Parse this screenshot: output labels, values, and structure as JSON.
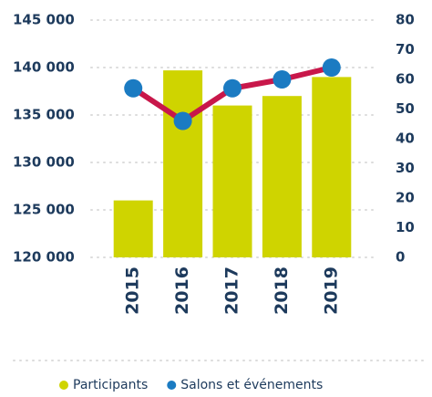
{
  "chart_data": {
    "type": "bar_line",
    "categories": [
      "2015",
      "2016",
      "2017",
      "2018",
      "2019"
    ],
    "series": [
      {
        "name": "Participants",
        "color": "#cfd400",
        "type": "bar",
        "values": [
          126000,
          139700,
          136000,
          137000,
          139000
        ]
      },
      {
        "name": "Salons et événements",
        "color": "#1b7bc2",
        "line_color": "#c8174a",
        "type": "line",
        "axis": "y2",
        "values": [
          57,
          46,
          57,
          60,
          64
        ]
      }
    ],
    "ylim": [
      120000,
      145000
    ],
    "yticks": [
      {
        "value": 120000,
        "label": "120 000"
      },
      {
        "value": 125000,
        "label": "125 000"
      },
      {
        "value": 130000,
        "label": "130 000"
      },
      {
        "value": 135000,
        "label": "135 000"
      },
      {
        "value": 140000,
        "label": "140 000"
      },
      {
        "value": 145000,
        "label": "145 000"
      }
    ],
    "y2lim": [
      0,
      80
    ],
    "y2ticks": [
      0,
      10,
      20,
      30,
      40,
      50,
      60,
      70,
      80
    ],
    "grid": true,
    "legend": "bottom"
  }
}
